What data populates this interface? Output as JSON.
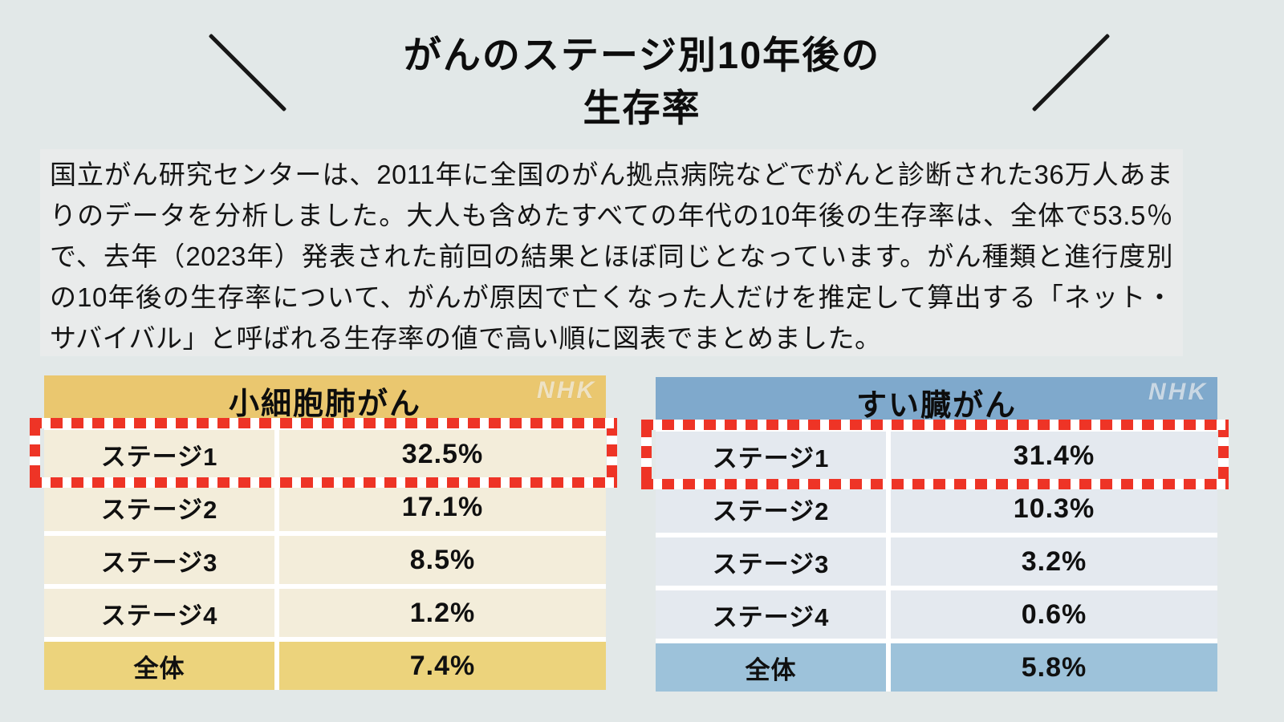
{
  "title": {
    "line1": "がんのステージ別10年後の",
    "line2": "生存率"
  },
  "intro": {
    "text": "国立がん研究センターは、2011年に全国のがん拠点病院などでがんと診断された36万人あまりのデータを分析しました。大人も含めたすべての年代の10年後の生存率は、全体で53.5％で、去年（2023年）発表された前回の結果とほぼ同じとなっています。がん種類と進行度別の10年後の生存率について、がんが原因で亡くなった人だけを推定して算出する「ネット・サバイバル」と呼ばれる生存率の値で高い順に図表でまとめました。",
    "bg_color": "#e9ebeb"
  },
  "watermark": "NHK",
  "colors": {
    "page_bg": "#e2e8e8",
    "highlight_red": "#ee3426",
    "dash_gap_white": "#ffffff",
    "title_text": "#0d0d0d"
  },
  "chart_data": [
    {
      "type": "table",
      "title": "小細胞肺がん",
      "theme": {
        "header_bg": "#eac76f",
        "row_bg": "#f3edda",
        "total_bg": "#ecd37c"
      },
      "rows": [
        {
          "label": "ステージ1",
          "value": "32.5%",
          "highlighted": true,
          "total": false
        },
        {
          "label": "ステージ2",
          "value": "17.1%",
          "highlighted": false,
          "total": false
        },
        {
          "label": "ステージ3",
          "value": "8.5%",
          "highlighted": false,
          "total": false
        },
        {
          "label": "ステージ4",
          "value": "1.2%",
          "highlighted": false,
          "total": false
        },
        {
          "label": "全体",
          "value": "7.4%",
          "highlighted": false,
          "total": true
        }
      ]
    },
    {
      "type": "table",
      "title": "すい臓がん",
      "theme": {
        "header_bg": "#7fa9cc",
        "row_bg": "#e4e9ef",
        "total_bg": "#9dc2da"
      },
      "rows": [
        {
          "label": "ステージ1",
          "value": "31.4%",
          "highlighted": true,
          "total": false
        },
        {
          "label": "ステージ2",
          "value": "10.3%",
          "highlighted": false,
          "total": false
        },
        {
          "label": "ステージ3",
          "value": "3.2%",
          "highlighted": false,
          "total": false
        },
        {
          "label": "ステージ4",
          "value": "0.6%",
          "highlighted": false,
          "total": false
        },
        {
          "label": "全体",
          "value": "5.8%",
          "highlighted": false,
          "total": true
        }
      ]
    }
  ]
}
